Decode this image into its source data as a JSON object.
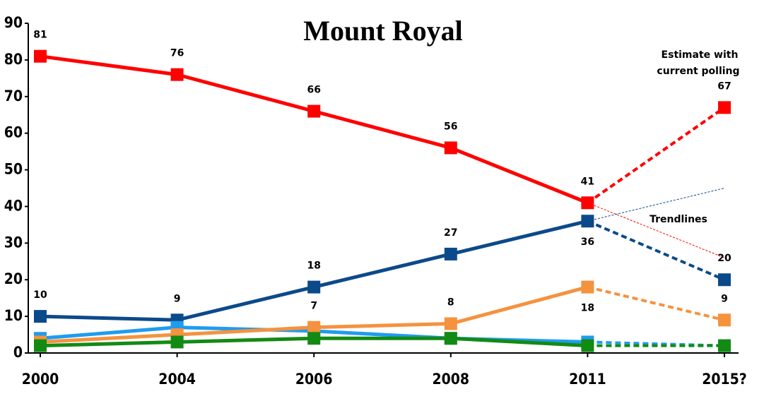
{
  "chart_data": {
    "type": "line",
    "title": "Mount Royal",
    "categories": [
      "2000",
      "2004",
      "2006",
      "2008",
      "2011",
      "2015?"
    ],
    "ylim": [
      0,
      90
    ],
    "yticks": [
      0,
      10,
      20,
      30,
      40,
      50,
      60,
      70,
      80,
      90
    ],
    "dashed_last_segment": true,
    "series": [
      {
        "color": "#ff0000",
        "values": [
          81,
          76,
          66,
          56,
          41,
          67
        ],
        "show_labels": [
          true,
          true,
          true,
          true,
          true,
          true
        ]
      },
      {
        "color": "#0b4a8a",
        "values": [
          10,
          9,
          18,
          27,
          36,
          20
        ],
        "show_labels": [
          true,
          true,
          true,
          true,
          true,
          true
        ]
      },
      {
        "color": "#1e9cf0",
        "values": [
          4,
          7,
          6,
          4,
          3,
          2
        ],
        "show_labels": [
          false,
          false,
          false,
          false,
          false,
          false
        ]
      },
      {
        "color": "#f5923e",
        "values": [
          3,
          5,
          7,
          8,
          18,
          9
        ],
        "show_labels": [
          false,
          false,
          true,
          true,
          true,
          true
        ]
      },
      {
        "color": "#138a13",
        "values": [
          2,
          3,
          4,
          4,
          2,
          2
        ],
        "show_labels": [
          false,
          false,
          false,
          false,
          false,
          false
        ]
      }
    ],
    "trendlines": {
      "label": "Trendlines",
      "series": [
        {
          "color": "#ff0000",
          "values": [
            41,
            26
          ]
        },
        {
          "color": "#0b4a8a",
          "values": [
            36,
            45
          ]
        }
      ]
    },
    "annotation": [
      "Estimate with",
      "current polling"
    ]
  }
}
